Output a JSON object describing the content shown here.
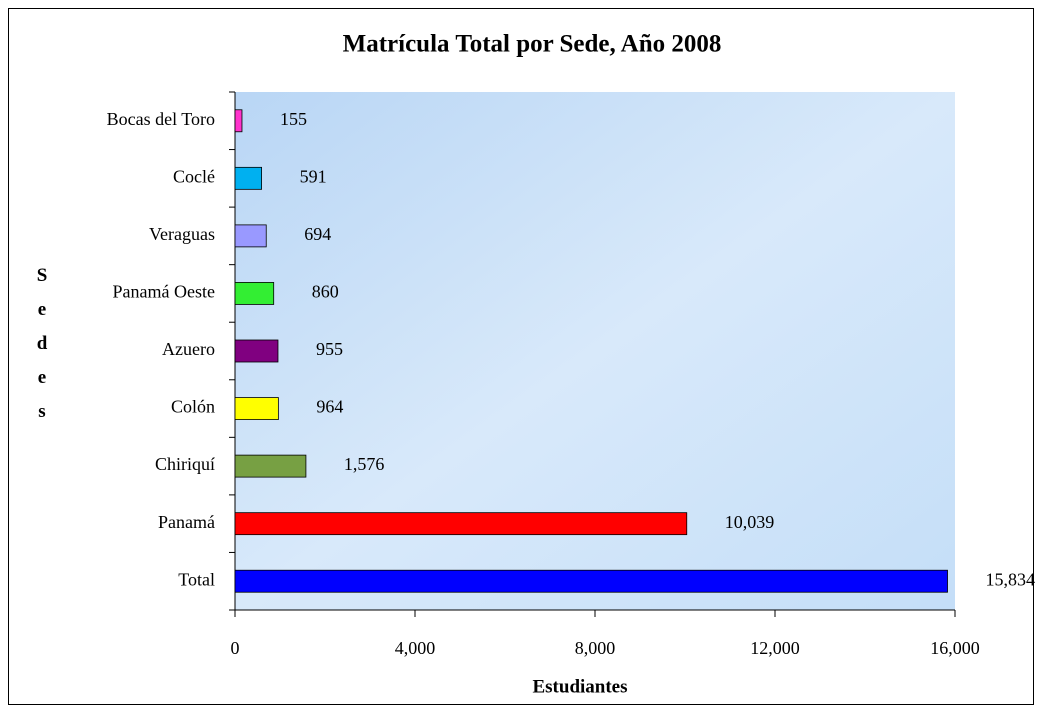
{
  "chart_data": {
    "type": "bar",
    "orientation": "horizontal",
    "title": "Matrícula Total por Sede, Año 2008",
    "x_label": "Estudiantes",
    "y_label": "Sedes",
    "categories": [
      "Bocas del Toro",
      "Coclé",
      "Veraguas",
      "Panamá Oeste",
      "Azuero",
      "Colón",
      "Chiriquí",
      "Panamá",
      "Total"
    ],
    "values": [
      155,
      591,
      694,
      860,
      955,
      964,
      1576,
      10039,
      15834
    ],
    "value_labels": [
      "155",
      "591",
      "694",
      "860",
      "955",
      "964",
      "1,576",
      "10,039",
      "15,834"
    ],
    "colors": [
      "#ff33cc",
      "#00b0f0",
      "#9999ff",
      "#33ee33",
      "#800080",
      "#ffff00",
      "#77a043",
      "#ff0000",
      "#0000ff"
    ],
    "xlim": [
      0,
      16000
    ],
    "xticks": [
      0,
      {
        "value": 4000,
        "label": "4,000"
      },
      {
        "value": 8000,
        "label": "8,000"
      },
      {
        "value": 12000,
        "label": "12,000"
      },
      {
        "value": 16000,
        "label": "16,000"
      }
    ]
  }
}
